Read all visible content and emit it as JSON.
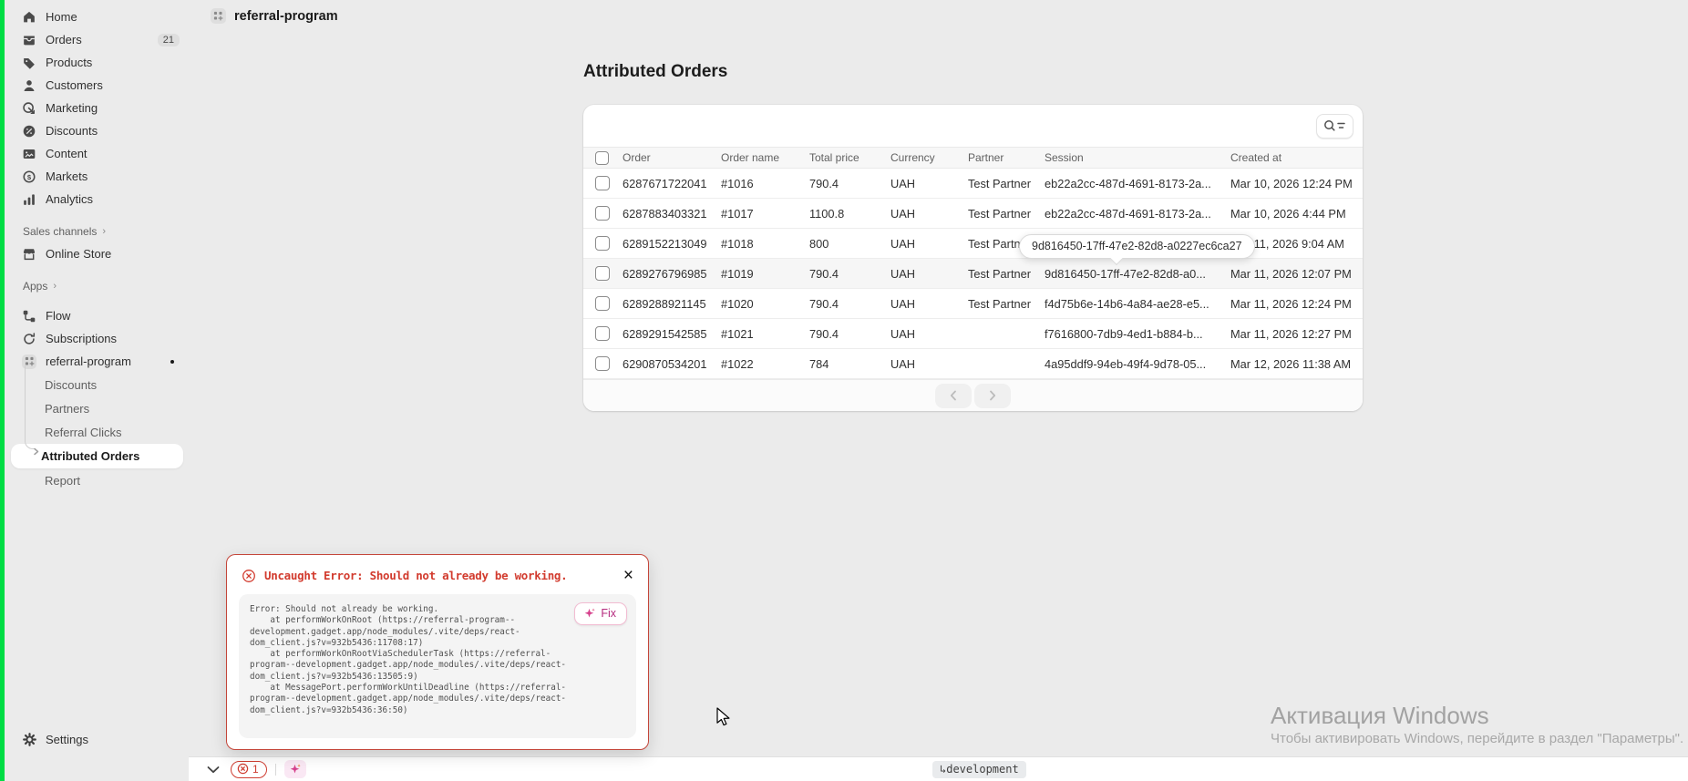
{
  "app": {
    "page_title": "referral-program"
  },
  "sidebar": {
    "items": [
      {
        "label": "Home",
        "icon": "home-icon"
      },
      {
        "label": "Orders",
        "icon": "orders-icon",
        "badge": "21"
      },
      {
        "label": "Products",
        "icon": "products-icon"
      },
      {
        "label": "Customers",
        "icon": "customers-icon"
      },
      {
        "label": "Marketing",
        "icon": "marketing-icon"
      },
      {
        "label": "Discounts",
        "icon": "discounts-icon"
      },
      {
        "label": "Content",
        "icon": "content-icon"
      },
      {
        "label": "Markets",
        "icon": "markets-icon"
      },
      {
        "label": "Analytics",
        "icon": "analytics-icon"
      }
    ],
    "sales_channels": {
      "label": "Sales channels",
      "items": [
        {
          "label": "Online Store",
          "icon": "store-icon"
        }
      ]
    },
    "apps": {
      "label": "Apps",
      "items": [
        {
          "label": "Flow",
          "icon": "flow-icon"
        },
        {
          "label": "Subscriptions",
          "icon": "subscriptions-icon"
        },
        {
          "label": "referral-program",
          "icon": "app-grid-icon",
          "has_notification_dot": true
        }
      ]
    },
    "app_nav": [
      {
        "label": "Discounts"
      },
      {
        "label": "Partners"
      },
      {
        "label": "Referral Clicks"
      },
      {
        "label": "Attributed Orders",
        "active": true
      },
      {
        "label": "Report"
      }
    ],
    "settings": {
      "label": "Settings",
      "icon": "settings-icon"
    }
  },
  "main": {
    "heading": "Attributed Orders",
    "table": {
      "columns": [
        "Order",
        "Order name",
        "Total price",
        "Currency",
        "Partner",
        "Session",
        "Created at"
      ],
      "rows": [
        {
          "order": "6287671722041",
          "name": "#1016",
          "price": "790.4",
          "currency": "UAH",
          "partner": "Test Partner",
          "session": "eb22a2cc-487d-4691-8173-2a...",
          "created": "Mar 10, 2026 12:24 PM"
        },
        {
          "order": "6287883403321",
          "name": "#1017",
          "price": "1100.8",
          "currency": "UAH",
          "partner": "Test Partner",
          "session": "eb22a2cc-487d-4691-8173-2a...",
          "created": "Mar 10, 2026 4:44 PM"
        },
        {
          "order": "6289152213049",
          "name": "#1018",
          "price": "800",
          "currency": "UAH",
          "partner": "Test Partner",
          "session": "",
          "created": "Mar 11, 2026 9:04 AM"
        },
        {
          "order": "6289276796985",
          "name": "#1019",
          "price": "790.4",
          "currency": "UAH",
          "partner": "Test Partner",
          "session": "9d816450-17ff-47e2-82d8-a0...",
          "created": "Mar 11, 2026 12:07 PM",
          "hover": true
        },
        {
          "order": "6289288921145",
          "name": "#1020",
          "price": "790.4",
          "currency": "UAH",
          "partner": "Test Partner",
          "session": "f4d75b6e-14b6-4a84-ae28-e5...",
          "created": "Mar 11, 2026 12:24 PM"
        },
        {
          "order": "6289291542585",
          "name": "#1021",
          "price": "790.4",
          "currency": "UAH",
          "partner": "",
          "session": "f7616800-7db9-4ed1-b884-b...",
          "created": "Mar 11, 2026 12:27 PM"
        },
        {
          "order": "6290870534201",
          "name": "#1022",
          "price": "784",
          "currency": "UAH",
          "partner": "",
          "session": "4a95ddf9-94eb-49f4-9d78-05...",
          "created": "Mar 12, 2026 11:38 AM"
        }
      ]
    },
    "toolbar_icons": [
      "search-icon",
      "filter-icon"
    ],
    "pagination_icons": [
      "chevron-left-icon",
      "chevron-right-icon"
    ],
    "session_tooltip": "9d816450-17ff-47e2-82d8-a0227ec6ca27"
  },
  "error_dialog": {
    "title": "Uncaught Error: Should not already be working.",
    "close_icon": "close-icon",
    "stack": "Error: Should not already be working.\n    at performWorkOnRoot (https://referral-program--\ndevelopment.gadget.app/node_modules/.vite/deps/react-\ndom_client.js?v=932b5436:11708:17)\n    at performWorkOnRootViaSchedulerTask (https://referral-\nprogram--development.gadget.app/node_modules/.vite/deps/react-\ndom_client.js?v=932b5436:13505:9)\n    at MessagePort.performWorkUntilDeadline (https://referral-\nprogram--development.gadget.app/node_modules/.vite/deps/react-\ndom_client.js?v=932b5436:36:50)",
    "fix_label": "Fix",
    "fix_icon": "sparkle-icon"
  },
  "dev_toolbar": {
    "collapse_icon": "chevron-down-icon",
    "error_count": "1",
    "error_icon": "circle-x-icon",
    "assistant_icon": "sparkle-icon",
    "environment_badge": "↳development"
  },
  "watermark": {
    "title": "Активация Windows",
    "subtitle": "Чтобы активировать Windows, перейдите в раздел \"Параметры\"."
  },
  "colors": {
    "accent_red": "#d23b2e",
    "accent_pink": "#d6408c",
    "screen_edge_green": "#00dd44",
    "background_gray": "#ebebeb"
  }
}
